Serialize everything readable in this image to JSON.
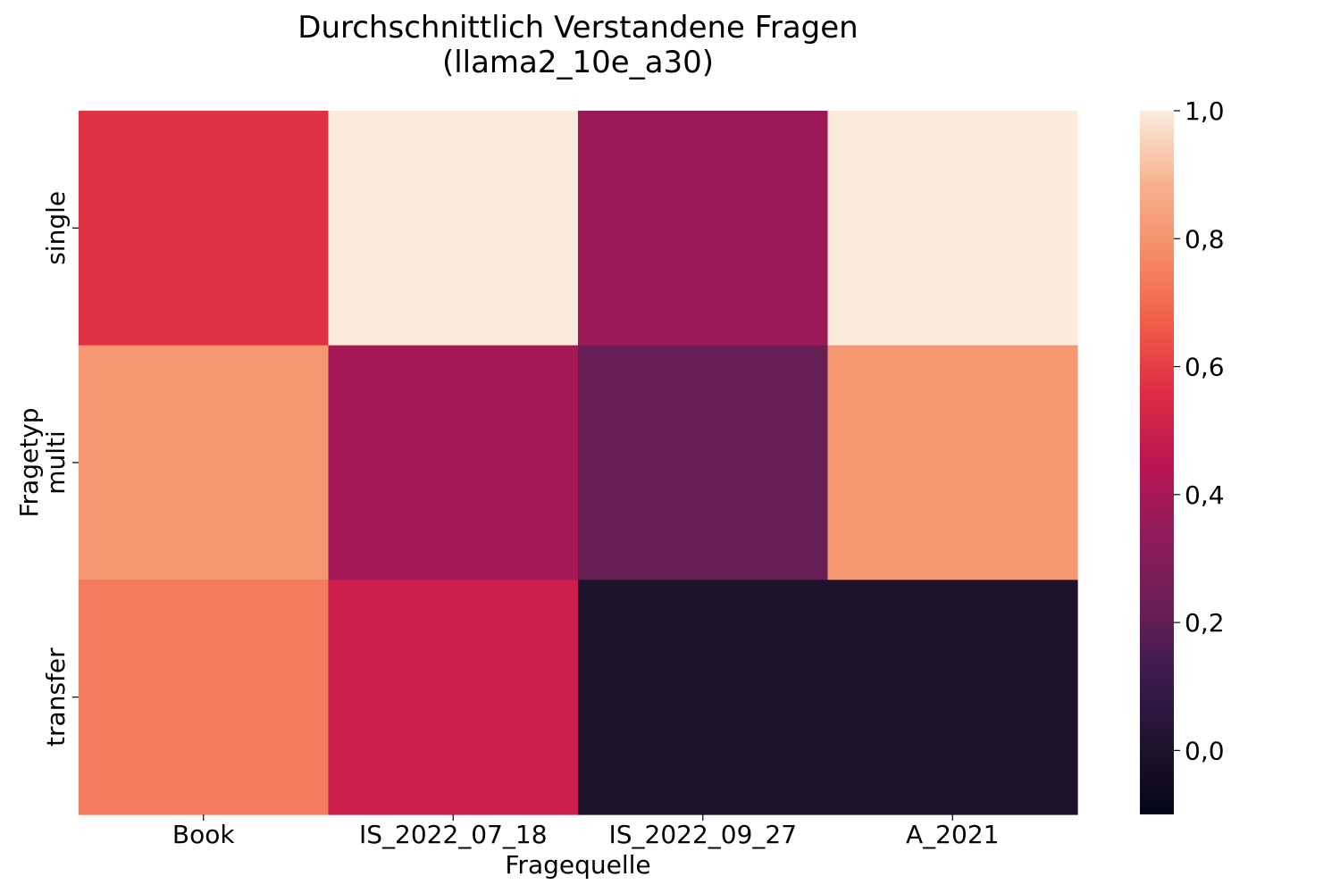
{
  "chart_data": {
    "type": "heatmap",
    "title_line1": "Durchschnittlich Verstandene Fragen",
    "title_line2": "(llama2_10e_a30)",
    "xlabel": "Fragequelle",
    "ylabel": "Fragetyp",
    "x_categories": [
      "Book",
      "IS_2022_07_18",
      "IS_2022_09_27",
      "A_2021"
    ],
    "y_categories": [
      "single",
      "multi",
      "transfer"
    ],
    "values": [
      [
        0.57,
        1.0,
        0.37,
        1.0
      ],
      [
        0.81,
        0.4,
        0.22,
        0.81
      ],
      [
        0.74,
        0.5,
        0.0,
        0.0
      ]
    ],
    "colorbar": {
      "vmin": -0.1,
      "vmax": 1.0,
      "ticks": [
        0.0,
        0.2,
        0.4,
        0.6,
        0.8,
        1.0
      ],
      "tick_labels": [
        "0,0",
        "0,2",
        "0,4",
        "0,6",
        "0,8",
        "1,0"
      ],
      "colormap": "rocket"
    }
  }
}
